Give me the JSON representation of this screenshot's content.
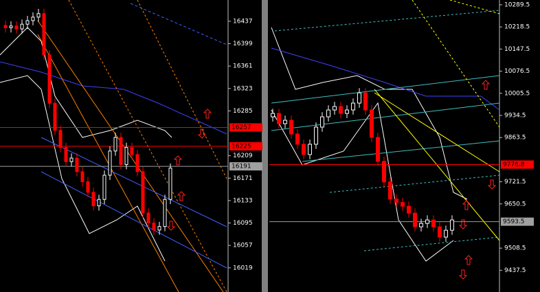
{
  "chart_data": [
    {
      "type": "candlestick",
      "ylim": [
        15978,
        16473
      ],
      "yticks": [
        16437,
        16399,
        16361,
        16323,
        16285,
        16209,
        16171,
        16133,
        16095,
        16057,
        16019
      ],
      "up_color": "#ffffff",
      "down_color": "#ff0000",
      "levels": [
        {
          "value": 16257,
          "color": "#ff0000"
        },
        {
          "value": 16225,
          "color": "#ff0000"
        },
        {
          "value": 16191,
          "color": "#a0a0a0"
        }
      ],
      "open": [
        16430,
        16426,
        16429,
        16424,
        16432,
        16438,
        16444,
        16450,
        16380,
        16298,
        16252,
        16223,
        16199,
        16205,
        16182,
        16165,
        16147,
        16124,
        16135,
        16176,
        16217,
        16240,
        16194,
        16223,
        16211,
        16182,
        16112,
        16095,
        16083,
        16089,
        16135
      ],
      "high": [
        16438,
        16437,
        16437,
        16440,
        16446,
        16452,
        16458,
        16458,
        16388,
        16306,
        16260,
        16231,
        16213,
        16213,
        16190,
        16173,
        16155,
        16143,
        16184,
        16225,
        16248,
        16248,
        16231,
        16231,
        16219,
        16190,
        16120,
        16103,
        16097,
        16143,
        16196
      ],
      "low": [
        16418,
        16418,
        16416,
        16416,
        16424,
        16430,
        16436,
        16372,
        16290,
        16244,
        16215,
        16191,
        16191,
        16174,
        16157,
        16139,
        16116,
        16116,
        16127,
        16168,
        16209,
        16186,
        16186,
        16203,
        16174,
        16104,
        16087,
        16075,
        16075,
        16081,
        16127
      ],
      "close": [
        16426,
        16429,
        16424,
        16432,
        16438,
        16444,
        16450,
        16380,
        16298,
        16252,
        16223,
        16199,
        16205,
        16182,
        16165,
        16147,
        16124,
        16135,
        16176,
        16217,
        16240,
        16194,
        16223,
        16211,
        16182,
        16112,
        16095,
        16083,
        16089,
        16135,
        16188
      ]
    },
    {
      "type": "candlestick",
      "ylim": [
        9367.8,
        10304.9
      ],
      "yticks": [
        10289.5,
        10218.5,
        10147.5,
        10076.5,
        10005.5,
        9934.5,
        9863.5,
        9721.5,
        9650.5,
        9508.5,
        9437.5
      ],
      "up_color": "#ffffff",
      "down_color": "#ff0000",
      "levels": [
        {
          "value": 9776.8,
          "color": "#ff0000"
        },
        {
          "value": 9593.5,
          "color": "#a0a0a0"
        }
      ],
      "open": [
        9930,
        9941,
        9908,
        9919,
        9875,
        9842,
        9809,
        9842,
        9897,
        9930,
        9952,
        9963,
        9941,
        9952,
        9974,
        10007,
        9952,
        9864,
        9787,
        9721,
        9666,
        9655,
        9643,
        9621,
        9577,
        9588,
        9599,
        9577,
        9544,
        9566
      ],
      "high": [
        9956,
        9956,
        9934,
        9934,
        9890,
        9857,
        9857,
        9912,
        9945,
        9967,
        9978,
        9978,
        9967,
        9989,
        10022,
        10022,
        9967,
        9879,
        9802,
        9736,
        9681,
        9670,
        9658,
        9636,
        9603,
        9614,
        9614,
        9592,
        9581,
        9614
      ],
      "low": [
        9915,
        9893,
        9893,
        9860,
        9827,
        9794,
        9794,
        9827,
        9882,
        9915,
        9937,
        9926,
        9926,
        9937,
        9959,
        9937,
        9849,
        9772,
        9706,
        9651,
        9640,
        9628,
        9606,
        9562,
        9562,
        9573,
        9562,
        9529,
        9529,
        9551
      ],
      "close": [
        9941,
        9908,
        9919,
        9875,
        9842,
        9809,
        9842,
        9897,
        9930,
        9952,
        9963,
        9941,
        9952,
        9974,
        10007,
        9952,
        9864,
        9787,
        9721,
        9666,
        9655,
        9643,
        9621,
        9577,
        9588,
        9599,
        9577,
        9544,
        9566,
        9599
      ]
    }
  ]
}
